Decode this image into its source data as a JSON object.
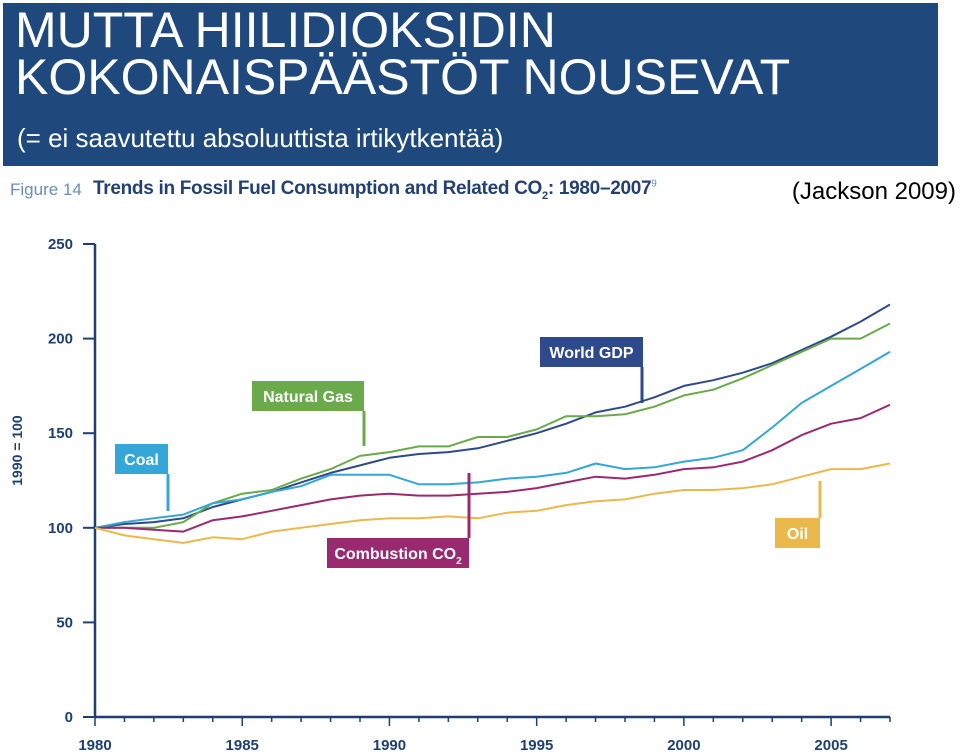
{
  "header": {
    "title_line1": "MUTTA HIILIDIOKSIDIN",
    "title_line2": "KOKONAISPÄÄSTÖT NOUSEVAT",
    "subtitle": "(= ei saavutettu absoluuttista irtikytkentää)",
    "background_color": "#1f497d"
  },
  "figure": {
    "label": "Figure 14",
    "title_main": "Trends in Fossil Fuel Consumption and Related CO",
    "title_sub": "2",
    "title_tail": ": 1980–2007",
    "title_note": "9"
  },
  "source": "(Jackson 2009)",
  "chart_data": {
    "type": "line",
    "ylabel": "1990 = 100",
    "ylim": [
      0,
      250
    ],
    "xlim": [
      1980,
      2007
    ],
    "y_ticks": [
      0,
      50,
      100,
      150,
      200,
      250
    ],
    "x_ticks": [
      1980,
      1985,
      1990,
      1995,
      2000,
      2005
    ],
    "x": [
      1980,
      1981,
      1982,
      1983,
      1984,
      1985,
      1986,
      1987,
      1988,
      1989,
      1990,
      1991,
      1992,
      1993,
      1994,
      1995,
      1996,
      1997,
      1998,
      1999,
      2000,
      2001,
      2002,
      2003,
      2004,
      2005,
      2006,
      2007
    ],
    "series": [
      {
        "name": "World GDP",
        "color": "#2e4a8c",
        "values": [
          100,
          102,
          103,
          105,
          111,
          115,
          119,
          124,
          129,
          133,
          137,
          139,
          140,
          142,
          146,
          150,
          155,
          161,
          164,
          169,
          175,
          178,
          182,
          187,
          194,
          201,
          209,
          218
        ]
      },
      {
        "name": "Natural Gas",
        "color": "#6aaa4a",
        "values": [
          100,
          100,
          100,
          103,
          113,
          118,
          120,
          126,
          131,
          138,
          140,
          143,
          143,
          148,
          148,
          152,
          159,
          159,
          160,
          164,
          170,
          173,
          179,
          186,
          193,
          200,
          200,
          208
        ]
      },
      {
        "name": "Coal",
        "color": "#34a6d8",
        "values": [
          100,
          103,
          105,
          107,
          113,
          115,
          119,
          122,
          128,
          128,
          128,
          123,
          123,
          124,
          126,
          127,
          129,
          134,
          131,
          132,
          135,
          137,
          141,
          153,
          166,
          175,
          184,
          193
        ]
      },
      {
        "name": "Combustion CO",
        "color": "#9a2a70",
        "values": [
          100,
          100,
          99,
          98,
          104,
          106,
          109,
          112,
          115,
          117,
          118,
          117,
          117,
          118,
          119,
          121,
          124,
          127,
          126,
          128,
          131,
          132,
          135,
          141,
          149,
          155,
          158,
          165
        ]
      },
      {
        "name": "Oil",
        "color": "#ebb84c",
        "values": [
          100,
          96,
          94,
          92,
          95,
          94,
          98,
          100,
          102,
          104,
          105,
          105,
          106,
          105,
          108,
          109,
          112,
          114,
          115,
          118,
          120,
          120,
          121,
          123,
          127,
          131,
          131,
          134
        ]
      }
    ],
    "callouts": [
      {
        "text": "World GDP",
        "sub": "",
        "series": "World GDP",
        "color": "#2e4a8c"
      },
      {
        "text": "Natural Gas",
        "sub": "",
        "series": "Natural Gas",
        "color": "#6aaa4a"
      },
      {
        "text": "Coal",
        "sub": "",
        "series": "Coal",
        "color": "#34a6d8"
      },
      {
        "text": "Combustion CO",
        "sub": "2",
        "series": "Combustion CO",
        "color": "#9a2a70"
      },
      {
        "text": "Oil",
        "sub": "",
        "series": "Oil",
        "color": "#ebb84c"
      }
    ],
    "axis_color": "#1f3f73",
    "grid": false
  }
}
